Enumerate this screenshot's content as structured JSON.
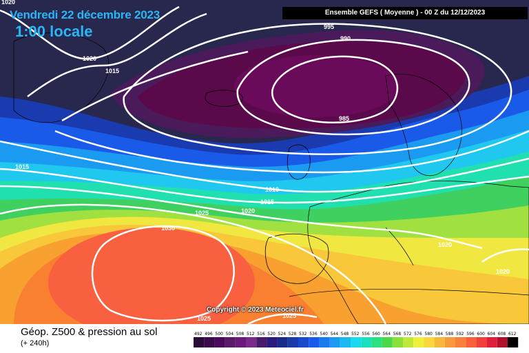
{
  "header": {
    "date": "Vendredi 22 décembre 2023",
    "local_time": "1:00 locale",
    "run_info": "Ensemble GEFS  ( Moyenne )  -  00 Z du 12/12/2023"
  },
  "copyright": "Copyright © 2023 Meteociel.fr",
  "footer": {
    "title": "Géop. Z500 & pression au sol",
    "subtitle": "(+ 240h)"
  },
  "isobar_labels": [
    "1020",
    "1025",
    "1015",
    "995",
    "990",
    "985",
    "1015",
    "1010",
    "1015",
    "1020",
    "1025",
    "1030",
    "1020",
    "1020",
    "1025"
  ],
  "legend_scale": {
    "ticks": [
      "492",
      "496",
      "500",
      "504",
      "508",
      "512",
      "516",
      "520",
      "524",
      "528",
      "532",
      "536",
      "540",
      "544",
      "548",
      "552",
      "556",
      "560",
      "564",
      "568",
      "572",
      "576",
      "580",
      "584",
      "588",
      "592",
      "596",
      "600",
      "604",
      "608",
      "612"
    ],
    "colors": [
      "#2a0a3a",
      "#3a0a4a",
      "#4a0a5a",
      "#5a1a6a",
      "#6a1a7a",
      "#7a2a8a",
      "#4a1a6a",
      "#2a1a7a",
      "#1a2a8a",
      "#1a3aaa",
      "#1a4acc",
      "#1a5aee",
      "#1a7af0",
      "#1a9af0",
      "#1abaf0",
      "#1adaf0",
      "#1ae0c0",
      "#2ae080",
      "#4ad84a",
      "#8ae03a",
      "#c0e83a",
      "#f0f03a",
      "#f8d83a",
      "#f8b83a",
      "#f89a3a",
      "#f8803a",
      "#f8603a",
      "#f0403a",
      "#e0203a",
      "#b0102a",
      "#000000"
    ]
  },
  "map": {
    "colors": {
      "deep_trough": "#5a0a4a",
      "trough": "#7a1a6a",
      "dark_navy": "#28284e",
      "blue": "#1040e0",
      "cyan": "#20c8f0",
      "green": "#40d060",
      "yellow": "#f0e840",
      "orange": "#f8a030",
      "red_orange": "#f86040"
    }
  }
}
